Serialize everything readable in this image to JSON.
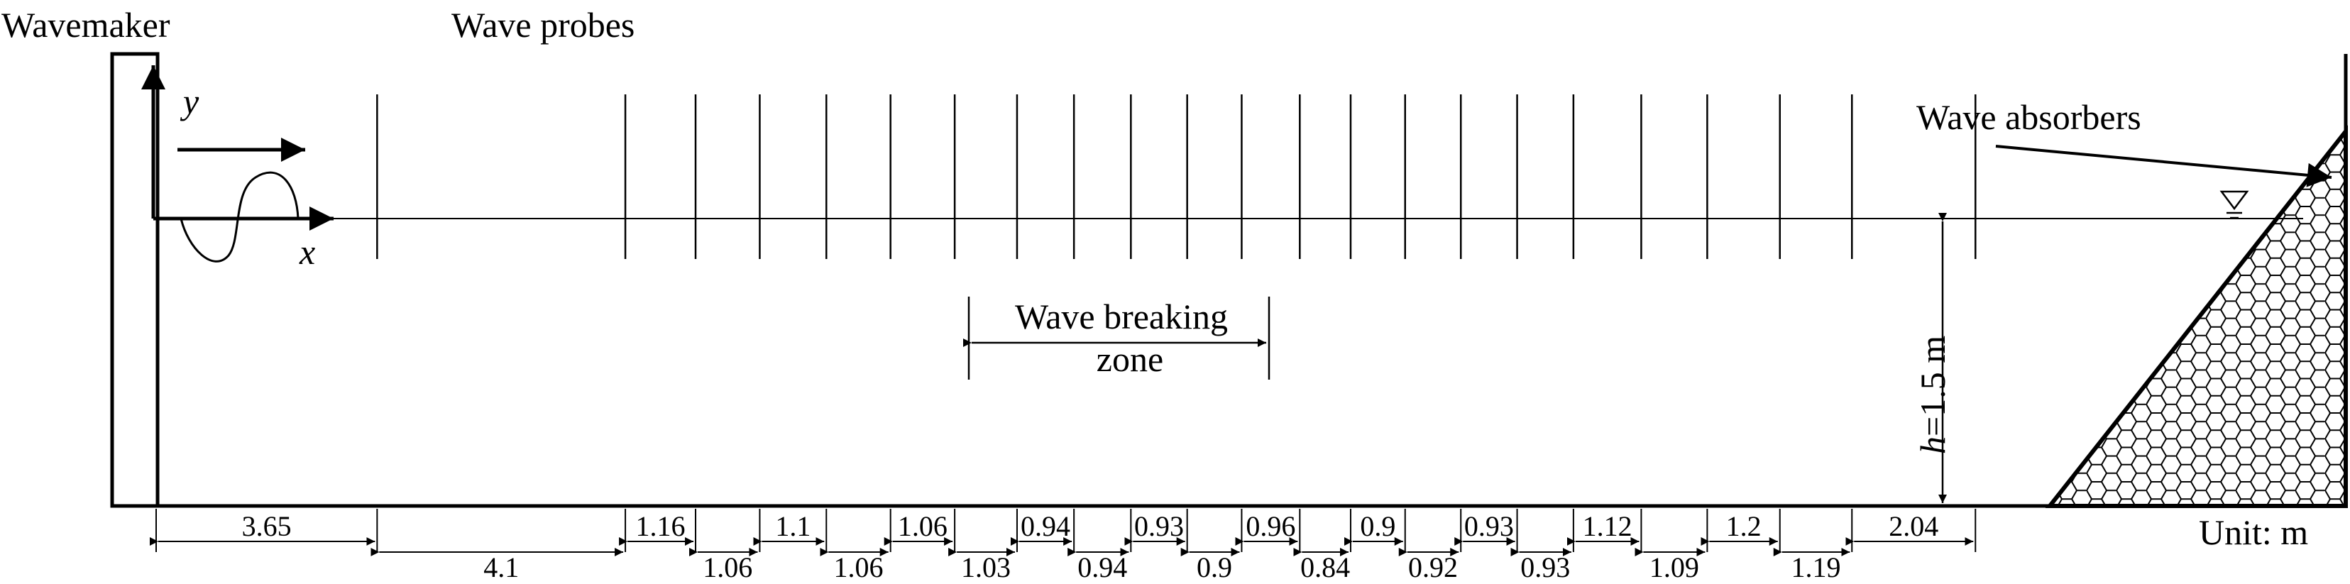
{
  "labels": {
    "wavemaker": "Wavemaker",
    "wave_probes": "Wave probes",
    "wave_absorbers": "Wave absorbers",
    "breaking_line1": "Wave breaking",
    "breaking_line2": "zone",
    "depth_h": "h",
    "depth_value": "=1.5 m",
    "unit": "Unit: m",
    "axis_x": "x",
    "axis_y": "y"
  },
  "probe_positions_m": [
    3.65,
    7.75,
    8.91,
    9.97,
    11.07,
    12.13,
    13.19,
    14.22,
    15.16,
    16.1,
    17.03,
    17.93,
    18.89,
    19.73,
    20.63,
    21.55,
    22.48,
    23.41,
    24.53,
    25.62,
    26.82,
    28.01,
    30.05
  ],
  "spacings_top": [
    "3.65",
    "1.16",
    "1.1",
    "1.06",
    "0.94",
    "0.93",
    "0.96",
    "0.9",
    "0.93",
    "1.12",
    "1.2",
    "2.04"
  ],
  "spacings_bottom": [
    "4.1",
    "1.06",
    "1.06",
    "1.03",
    "0.94",
    "0.9",
    "0.84",
    "0.92",
    "0.93",
    "1.09",
    "1.19"
  ]
}
